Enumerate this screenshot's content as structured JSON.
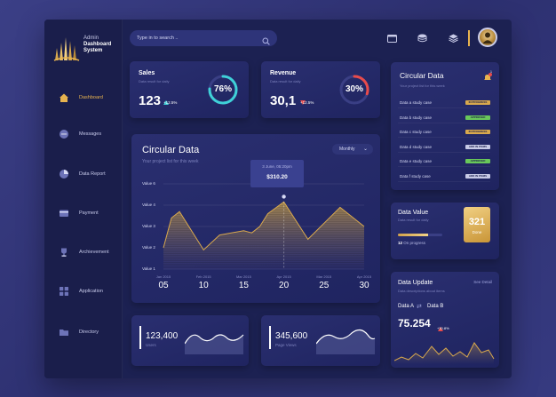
{
  "brand": {
    "line1": "Admin",
    "line2": "Dashboard",
    "line3": "System"
  },
  "nav": [
    {
      "label": "Dashboard",
      "icon": "home-icon"
    },
    {
      "label": "Messages",
      "icon": "chat-icon"
    },
    {
      "label": "Data Report",
      "icon": "pie-chart-icon"
    },
    {
      "label": "Payment",
      "icon": "wallet-icon"
    },
    {
      "label": "Archievement",
      "icon": "trophy-icon"
    },
    {
      "label": "Application",
      "icon": "grid-icon"
    },
    {
      "label": "Directory",
      "icon": "folder-icon"
    }
  ],
  "search": {
    "placeholder": "Type in to search ..",
    "icon": "search-icon"
  },
  "toolbar": {
    "icons": [
      "window-icon",
      "database-icon",
      "layers-icon"
    ]
  },
  "sales": {
    "title": "Sales",
    "sub": "Data result for daily",
    "value": "123",
    "delta": "+12.5%",
    "percent": "76%",
    "percent_value": 76,
    "color": "#3fd1d8"
  },
  "revenue": {
    "title": "Revenue",
    "sub": "Data result for daily",
    "value": "30,1",
    "delta": "+12.5%",
    "percent": "30%",
    "percent_value": 30,
    "color": "#e84b4b"
  },
  "main_chart": {
    "title": "Circular Data",
    "subtitle": "Your project list for this week",
    "dropdown": "Monthly",
    "tooltip": {
      "date": "3 June, 05:20pm",
      "value": "$310.20"
    }
  },
  "chart_data": {
    "type": "area",
    "title": "Circular Data",
    "y_tick_labels": [
      "Value 6",
      "Value 4",
      "Value 3",
      "Value 2",
      "Value 1"
    ],
    "x_months": [
      "Jan 2015",
      "Feb 2015",
      "Mar 2015",
      "Apr 2015",
      "Mar 2015",
      "Apr 2015"
    ],
    "x_days": [
      "05",
      "10",
      "15",
      "20",
      "25",
      "30"
    ],
    "x": [
      5,
      10,
      15,
      20,
      25,
      30
    ],
    "series": [
      {
        "values": [
          [
            5,
            2.0
          ],
          [
            6,
            3.4
          ],
          [
            7,
            3.7
          ],
          [
            10,
            1.9
          ],
          [
            12,
            2.6
          ],
          [
            15,
            2.8
          ],
          [
            16,
            2.7
          ],
          [
            17,
            3.0
          ],
          [
            18,
            3.6
          ],
          [
            20,
            4.3
          ],
          [
            23,
            2.4
          ],
          [
            27,
            3.9
          ],
          [
            30,
            3.0
          ]
        ]
      }
    ],
    "ylim": [
      1,
      6
    ],
    "color": "#d9a94d"
  },
  "circular_list": {
    "title": "Circular Data",
    "subtitle": "Your project list for this week",
    "notification_count": "1",
    "rows": [
      {
        "name": "Data a study case",
        "badge": "IN PROGRESS",
        "color": "#d9a94d"
      },
      {
        "name": "Data b study case",
        "badge": "APPROVED",
        "color": "#69c85a"
      },
      {
        "name": "Data c study case",
        "badge": "IN PROGRESS",
        "color": "#d9a94d"
      },
      {
        "name": "Data d study case",
        "badge": "ADD IN ITEMS",
        "color": "#c7cae6"
      },
      {
        "name": "Data e study case",
        "badge": "APPROVED",
        "color": "#69c85a"
      },
      {
        "name": "Data f study case",
        "badge": "ADD IN ITEMS",
        "color": "#c7cae6"
      }
    ]
  },
  "data_value": {
    "title": "Data Value",
    "subtitle": "Data result for daily",
    "progress_count": "12",
    "progress_label": "On progress",
    "progress_fraction": 0.68,
    "number": "321",
    "number_label": "Done"
  },
  "data_update": {
    "title": "Data Update",
    "subtitle": "Data descriptions about items",
    "see": "See Detail",
    "a": "Data A",
    "b": "Data B",
    "value": "75.254",
    "delta": "+30.8%"
  },
  "bottom_cards": [
    {
      "value": "123,400",
      "label": "Users"
    },
    {
      "value": "345,600",
      "label": "Page Views"
    }
  ]
}
